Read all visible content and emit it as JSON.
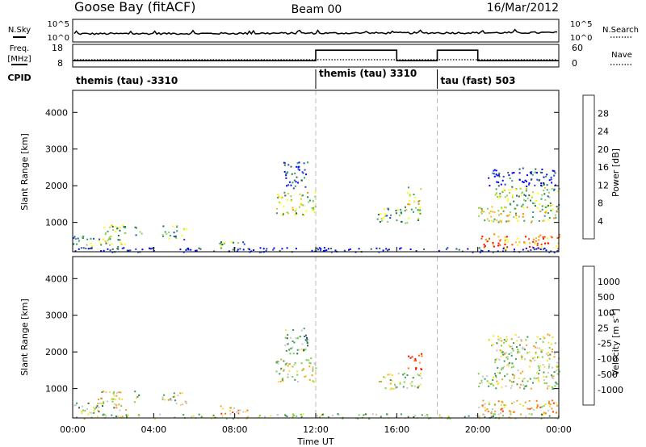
{
  "header": {
    "station": "Goose Bay (fitACF)",
    "beam": "Beam 00",
    "date": "16/Mar/2012"
  },
  "top_panels": {
    "nsky_label": "N.Sky",
    "nsearch_label": "N.Search",
    "noise_ticks": [
      "10^5",
      "10^0"
    ],
    "freq_label": "Freq.",
    "freq_unit": "[MHz]",
    "freq_ticks": [
      "18",
      "8"
    ],
    "nave_label": "Nave",
    "nave_ticks": [
      "60",
      "0"
    ],
    "cpid_label": "CPID",
    "cpid_segments": [
      {
        "label": "themis (tau) -3310",
        "start_hour": 0,
        "end_hour": 12
      },
      {
        "label": "themis (tau) 3310",
        "start_hour": 12,
        "end_hour": 18
      },
      {
        "label": "tau (fast) 503",
        "start_hour": 18,
        "end_hour": 24
      }
    ],
    "frequency_mhz": [
      {
        "start_hour": 0,
        "end_hour": 12,
        "value": 11
      },
      {
        "start_hour": 12,
        "end_hour": 16,
        "value": 16
      },
      {
        "start_hour": 16,
        "end_hour": 18,
        "value": 11
      },
      {
        "start_hour": 18,
        "end_hour": 20,
        "value": 16
      },
      {
        "start_hour": 20,
        "end_hour": 24,
        "value": 11
      }
    ]
  },
  "chart_data": [
    {
      "type": "heatmap",
      "quantity": "power",
      "xlabel": "Time UT",
      "ylabel": "Slant Range [km]",
      "xlim": [
        0,
        24
      ],
      "ylim": [
        200,
        4600
      ],
      "x_ticks": [
        "00:00",
        "04:00",
        "08:00",
        "12:00",
        "16:00",
        "20:00",
        "00:00"
      ],
      "y_ticks": [
        1000,
        2000,
        3000,
        4000
      ],
      "colorbar": {
        "label": "Power [dB]",
        "ticks": [
          "4",
          "8",
          "12",
          "16",
          "20",
          "24",
          "28"
        ],
        "colors": [
          "#0000ff",
          "#1f47c8",
          "#2a6a4a",
          "#2e9e63",
          "#8cd45b",
          "#ffff00",
          "#f0c020",
          "#ff8c00",
          "#ff4500",
          "#ff0000"
        ]
      },
      "echo_regions": [
        {
          "t0": 0.0,
          "t1": 1.5,
          "r0": 300,
          "r1": 650,
          "level": 0.35
        },
        {
          "t0": 1.2,
          "t1": 2.6,
          "r0": 350,
          "r1": 950,
          "level": 0.45
        },
        {
          "t0": 3.0,
          "t1": 3.4,
          "r0": 650,
          "r1": 950,
          "level": 0.35
        },
        {
          "t0": 4.4,
          "t1": 5.6,
          "r0": 550,
          "r1": 950,
          "level": 0.4
        },
        {
          "t0": 7.2,
          "t1": 8.6,
          "r0": 300,
          "r1": 550,
          "level": 0.35
        },
        {
          "t0": 10.0,
          "t1": 12.0,
          "r0": 1200,
          "r1": 1850,
          "level": 0.5
        },
        {
          "t0": 10.4,
          "t1": 11.6,
          "r0": 1950,
          "r1": 2700,
          "level": 0.15
        },
        {
          "t0": 15.0,
          "t1": 17.2,
          "r0": 1000,
          "r1": 1450,
          "level": 0.4
        },
        {
          "t0": 16.5,
          "t1": 17.2,
          "r0": 1500,
          "r1": 2000,
          "level": 0.6
        },
        {
          "t0": 20.0,
          "t1": 24.0,
          "r0": 300,
          "r1": 700,
          "level": 0.75
        },
        {
          "t0": 20.0,
          "t1": 24.0,
          "r0": 1000,
          "r1": 1450,
          "level": 0.55
        },
        {
          "t0": 20.8,
          "t1": 24.0,
          "r0": 1450,
          "r1": 2000,
          "level": 0.4
        },
        {
          "t0": 20.5,
          "t1": 23.8,
          "r0": 2000,
          "r1": 2500,
          "level": 0.1
        },
        {
          "t0": 0.0,
          "t1": 24.0,
          "r0": 200,
          "r1": 330,
          "level": 0.05
        }
      ]
    },
    {
      "type": "heatmap",
      "quantity": "velocity",
      "xlabel": "Time UT",
      "ylabel": "Slant Range [km]",
      "xlim": [
        0,
        24
      ],
      "ylim": [
        200,
        4600
      ],
      "x_ticks": [
        "00:00",
        "04:00",
        "08:00",
        "12:00",
        "16:00",
        "20:00",
        "00:00"
      ],
      "y_ticks": [
        1000,
        2000,
        3000,
        4000
      ],
      "colorbar": {
        "label": "Velocity [m s^-1]",
        "ticks": [
          "1000",
          "500",
          "100",
          "25",
          "-25",
          "-100",
          "-500",
          "-1000"
        ],
        "colors": [
          "#2030c0",
          "#2a6a4a",
          "#3a9a50",
          "#7ad048",
          "#c8c8c8",
          "#f8e030",
          "#f0a020",
          "#ff7000",
          "#ff3000",
          "#ff0000"
        ]
      },
      "echo_regions": [
        {
          "t0": 0.0,
          "t1": 1.5,
          "r0": 300,
          "r1": 650,
          "level": 0.35
        },
        {
          "t0": 1.2,
          "t1": 2.6,
          "r0": 350,
          "r1": 950,
          "level": 0.45
        },
        {
          "t0": 3.0,
          "t1": 3.4,
          "r0": 650,
          "r1": 950,
          "level": 0.35
        },
        {
          "t0": 4.4,
          "t1": 5.6,
          "r0": 550,
          "r1": 950,
          "level": 0.45
        },
        {
          "t0": 7.2,
          "t1": 8.6,
          "r0": 300,
          "r1": 550,
          "level": 0.65
        },
        {
          "t0": 10.0,
          "t1": 12.0,
          "r0": 1200,
          "r1": 1850,
          "level": 0.45
        },
        {
          "t0": 10.4,
          "t1": 11.6,
          "r0": 1950,
          "r1": 2700,
          "level": 0.3
        },
        {
          "t0": 15.0,
          "t1": 17.2,
          "r0": 1000,
          "r1": 1450,
          "level": 0.45
        },
        {
          "t0": 16.5,
          "t1": 17.2,
          "r0": 1500,
          "r1": 2000,
          "level": 0.85
        },
        {
          "t0": 20.0,
          "t1": 24.0,
          "r0": 300,
          "r1": 700,
          "level": 0.6
        },
        {
          "t0": 20.0,
          "t1": 24.0,
          "r0": 1000,
          "r1": 1450,
          "level": 0.45
        },
        {
          "t0": 20.8,
          "t1": 24.0,
          "r0": 1450,
          "r1": 2000,
          "level": 0.45
        },
        {
          "t0": 20.5,
          "t1": 23.8,
          "r0": 2000,
          "r1": 2500,
          "level": 0.45
        },
        {
          "t0": 0.0,
          "t1": 24.0,
          "r0": 200,
          "r1": 330,
          "level": 0.4
        }
      ]
    }
  ]
}
